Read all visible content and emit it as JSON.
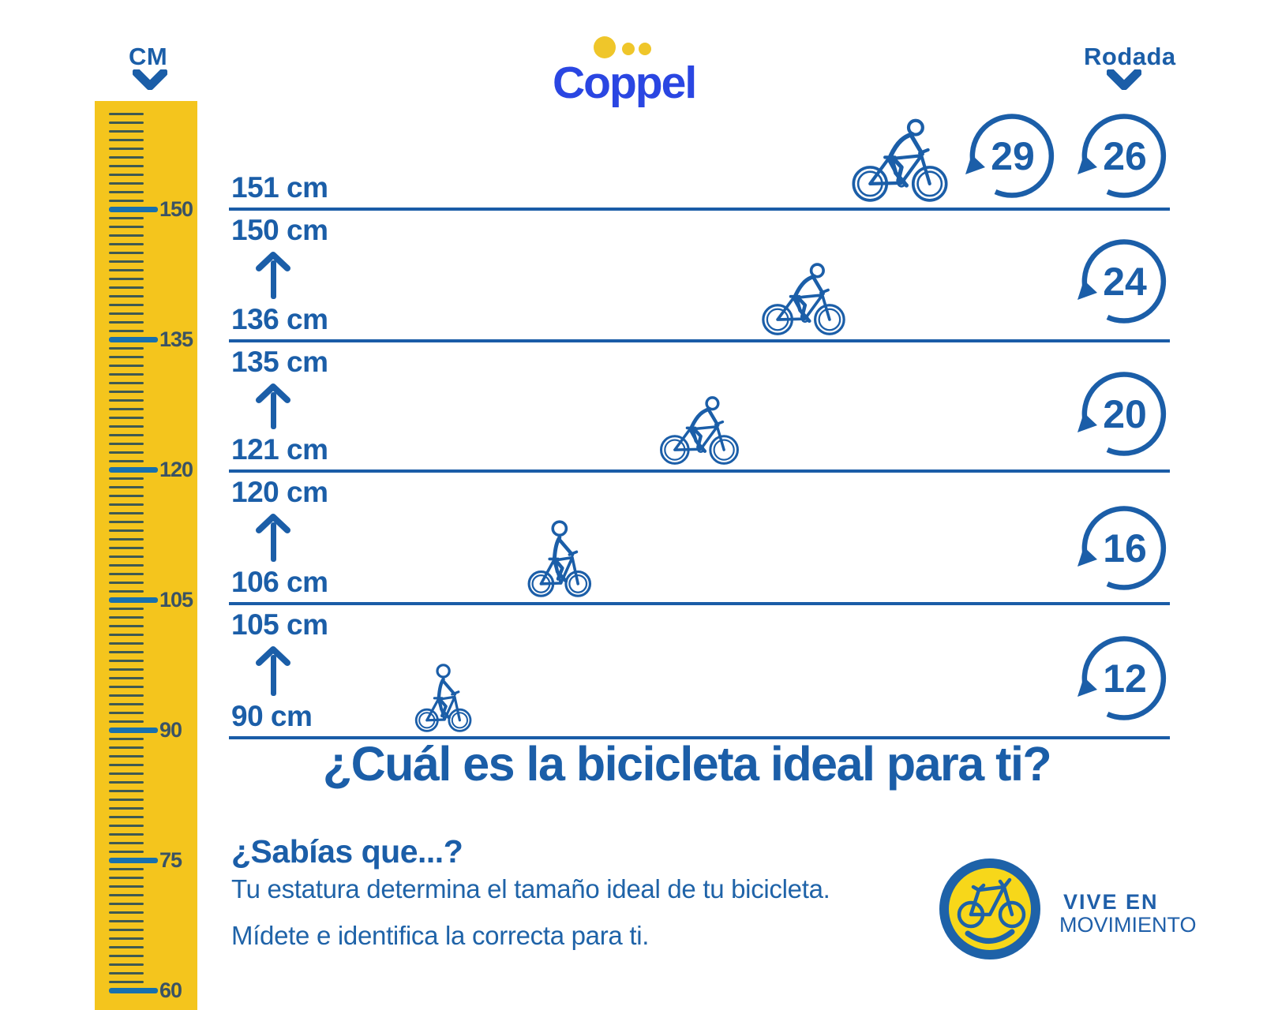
{
  "colors": {
    "primary_blue": "#1B5EA8",
    "coppel_blue": "#2A46E2",
    "dot_yellow": "#EFC62A",
    "ruler_yellow": "#F4C51D",
    "badge_yellow": "#F7D71A"
  },
  "header": {
    "cm_label": "CM",
    "brand": "Coppel",
    "rodada_label": "Rodada"
  },
  "ruler": {
    "unit": "cm",
    "min_cm": 60,
    "max_cm": 161,
    "label_step": 15,
    "labels": [
      "150",
      "135",
      "120",
      "105",
      "90",
      "75",
      "60"
    ]
  },
  "rows": [
    {
      "min_label": "151 cm",
      "max_label": "",
      "wheels": [
        "29",
        "26"
      ]
    },
    {
      "min_label": "136 cm",
      "max_label": "150 cm",
      "wheels": [
        "24"
      ]
    },
    {
      "min_label": "121 cm",
      "max_label": "135 cm",
      "wheels": [
        "20"
      ]
    },
    {
      "min_label": "106 cm",
      "max_label": "120 cm",
      "wheels": [
        "16"
      ]
    },
    {
      "min_label": "90 cm",
      "max_label": "105 cm",
      "wheels": [
        "12"
      ]
    }
  ],
  "headline": "¿Cuál es la bicicleta ideal para ti?",
  "facts": {
    "title": "¿Sabías que...?",
    "line1": "Tu estatura determina el tamaño ideal de tu bicicleta.",
    "line2": "Mídete e identifica la correcta para ti."
  },
  "badge": {
    "line1": "VIVE EN",
    "line2": "MOVIMIENTO"
  }
}
